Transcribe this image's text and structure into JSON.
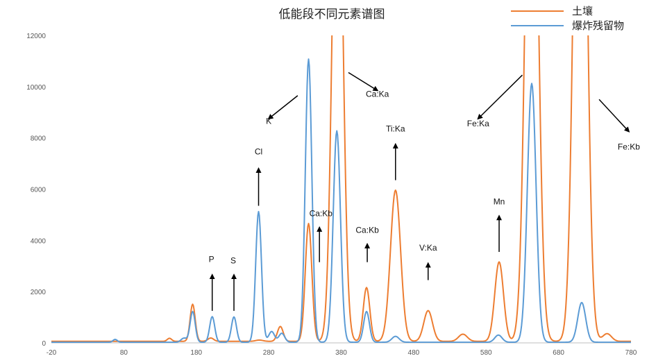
{
  "chart_data": {
    "type": "line",
    "title": "低能段不同元素谱图",
    "xlabel": "",
    "ylabel": "",
    "xlim": [
      -20,
      780
    ],
    "ylim": [
      0,
      12000
    ],
    "x_ticks": [
      "-20",
      "80",
      "180",
      "280",
      "380",
      "480",
      "580",
      "680",
      "780"
    ],
    "y_ticks": [
      "0",
      "2000",
      "4000",
      "6000",
      "8000",
      "10000",
      "12000"
    ],
    "grid": false,
    "legend": "top-right",
    "series": [
      {
        "name": "土壤",
        "color": "#ED7D31",
        "baseline": 60,
        "peaks": [
          {
            "x": 143,
            "h": 120,
            "w": 3
          },
          {
            "x": 175,
            "h": 1450,
            "w": 3.5
          },
          {
            "x": 200,
            "h": 130,
            "w": 4
          },
          {
            "x": 267,
            "h": 50,
            "w": 5
          },
          {
            "x": 296,
            "h": 580,
            "w": 4
          },
          {
            "x": 335,
            "h": 4600,
            "w": 4.5
          },
          {
            "x": 375,
            "h": 22000,
            "w": 7
          },
          {
            "x": 415,
            "h": 2100,
            "w": 4.5
          },
          {
            "x": 455,
            "h": 5900,
            "w": 7
          },
          {
            "x": 500,
            "h": 1200,
            "w": 6
          },
          {
            "x": 548,
            "h": 280,
            "w": 6
          },
          {
            "x": 598,
            "h": 3100,
            "w": 6
          },
          {
            "x": 643,
            "h": 26000,
            "w": 8
          },
          {
            "x": 710,
            "h": 30000,
            "w": 8
          },
          {
            "x": 747,
            "h": 300,
            "w": 6
          }
        ]
      },
      {
        "name": "爆炸残留物",
        "color": "#5B9BD5",
        "baseline": 25,
        "peaks": [
          {
            "x": 68,
            "h": 110,
            "w": 3
          },
          {
            "x": 163,
            "h": 160,
            "w": 4
          },
          {
            "x": 175,
            "h": 1200,
            "w": 3.5
          },
          {
            "x": 202,
            "h": 1000,
            "w": 3.5
          },
          {
            "x": 232,
            "h": 990,
            "w": 3.5
          },
          {
            "x": 266,
            "h": 5100,
            "w": 4
          },
          {
            "x": 284,
            "h": 420,
            "w": 4
          },
          {
            "x": 298,
            "h": 350,
            "w": 4
          },
          {
            "x": 335,
            "h": 11050,
            "w": 4.5
          },
          {
            "x": 374,
            "h": 8250,
            "w": 5
          },
          {
            "x": 415,
            "h": 1200,
            "w": 4
          },
          {
            "x": 455,
            "h": 230,
            "w": 5
          },
          {
            "x": 597,
            "h": 280,
            "w": 5
          },
          {
            "x": 643,
            "h": 10100,
            "w": 6
          },
          {
            "x": 712,
            "h": 1550,
            "w": 5.5
          }
        ]
      }
    ],
    "annotations": [
      {
        "text": "P",
        "label_x": 201,
        "label_y": 3150,
        "arrow": [
          202,
          1250,
          202,
          2650
        ]
      },
      {
        "text": "S",
        "label_x": 231,
        "label_y": 3100,
        "arrow": [
          232,
          1250,
          232,
          2650
        ]
      },
      {
        "text": "Cl",
        "label_x": 266,
        "label_y": 7350,
        "arrow": [
          266,
          5350,
          266,
          6800
        ]
      },
      {
        "text": "K",
        "label_x": 280,
        "label_y": 8550,
        "arrow": [
          320,
          9650,
          280,
          8750
        ]
      },
      {
        "text": "Ca:Kb",
        "label_x": 352,
        "label_y": 4950,
        "arrow": [
          350,
          3150,
          350,
          4500
        ]
      },
      {
        "text": "Ca:Ka",
        "label_x": 430,
        "label_y": 9600,
        "arrow": [
          390,
          10550,
          430,
          9850
        ]
      },
      {
        "text": "Ca:Kb",
        "label_x": 416,
        "label_y": 4300,
        "arrow": [
          416,
          3150,
          416,
          3850
        ]
      },
      {
        "text": "Ti:Ka",
        "label_x": 455,
        "label_y": 8250,
        "arrow": [
          455,
          6350,
          455,
          7750
        ]
      },
      {
        "text": "V:Ka",
        "label_x": 500,
        "label_y": 3600,
        "arrow": [
          500,
          2450,
          500,
          3100
        ]
      },
      {
        "text": "Fe:Ka",
        "label_x": 569,
        "label_y": 8450,
        "arrow": [
          630,
          10450,
          569,
          8750
        ]
      },
      {
        "text": "Mn",
        "label_x": 598,
        "label_y": 5400,
        "arrow": [
          598,
          3550,
          598,
          4950
        ]
      },
      {
        "text": "Fe:Kb",
        "label_x": 777,
        "label_y": 7550,
        "arrow": [
          736,
          9500,
          777,
          8250
        ]
      }
    ]
  }
}
